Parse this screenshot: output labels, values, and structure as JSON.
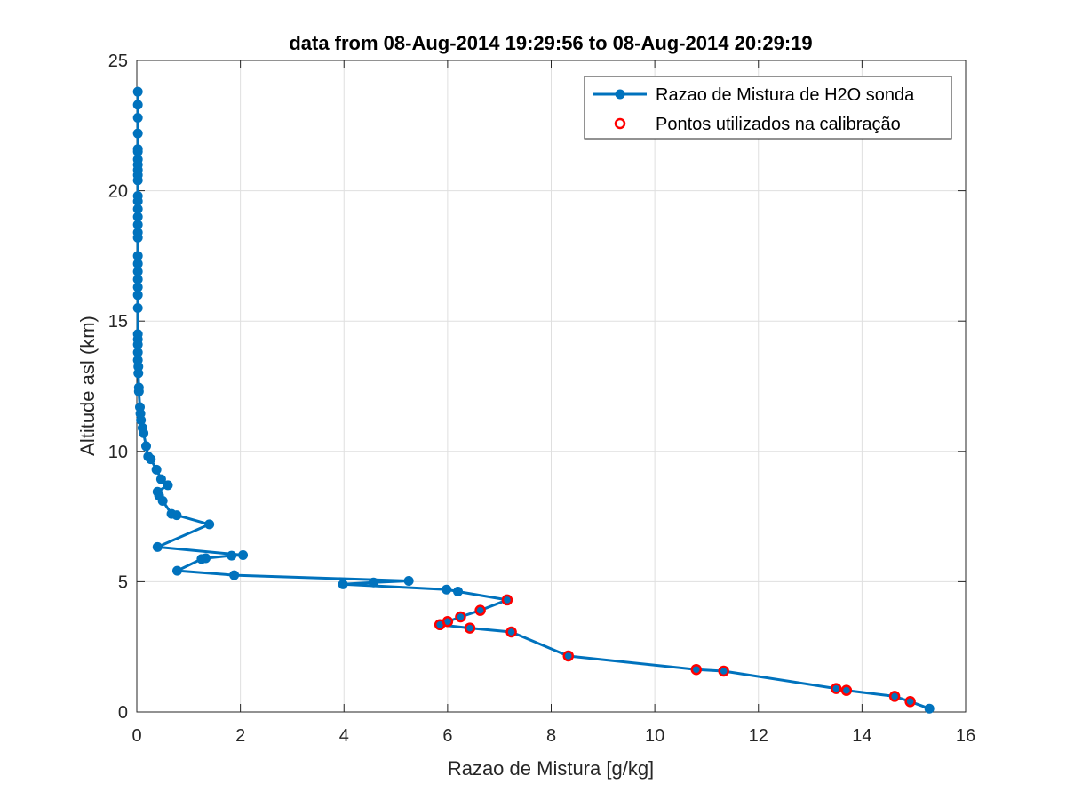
{
  "chart_data": {
    "type": "line",
    "title": "data from 08-Aug-2014 19:29:56 to 08-Aug-2014 20:29:19",
    "xlabel": "Razao de Mistura [g/kg]",
    "ylabel": "Altitude asl (km)",
    "xlim": [
      0,
      16
    ],
    "ylim": [
      0,
      25
    ],
    "xticks": [
      0,
      2,
      4,
      6,
      8,
      10,
      12,
      14,
      16
    ],
    "yticks": [
      0,
      5,
      10,
      15,
      20,
      25
    ],
    "grid": true,
    "legend_position": "top-right",
    "series": [
      {
        "name": "Razao de Mistura de H2O sonda",
        "color": "#0072bd",
        "marker": "filled-circle",
        "points": [
          [
            15.3,
            0.13
          ],
          [
            14.93,
            0.4
          ],
          [
            14.63,
            0.6
          ],
          [
            13.7,
            0.83
          ],
          [
            13.5,
            0.9
          ],
          [
            11.33,
            1.57
          ],
          [
            10.8,
            1.63
          ],
          [
            8.33,
            2.15
          ],
          [
            7.23,
            3.07
          ],
          [
            6.43,
            3.22
          ],
          [
            5.85,
            3.35
          ],
          [
            6.0,
            3.47
          ],
          [
            6.25,
            3.65
          ],
          [
            6.63,
            3.9
          ],
          [
            7.15,
            4.3
          ],
          [
            6.2,
            4.62
          ],
          [
            5.98,
            4.7
          ],
          [
            3.98,
            4.9
          ],
          [
            4.57,
            4.97
          ],
          [
            5.25,
            5.03
          ],
          [
            1.88,
            5.25
          ],
          [
            0.78,
            5.42
          ],
          [
            1.25,
            5.87
          ],
          [
            1.33,
            5.9
          ],
          [
            1.83,
            6.0
          ],
          [
            2.05,
            6.02
          ],
          [
            0.4,
            6.33
          ],
          [
            1.4,
            7.2
          ],
          [
            0.77,
            7.55
          ],
          [
            0.67,
            7.6
          ],
          [
            0.5,
            8.1
          ],
          [
            0.43,
            8.3
          ],
          [
            0.4,
            8.45
          ],
          [
            0.6,
            8.7
          ],
          [
            0.47,
            8.93
          ],
          [
            0.38,
            9.3
          ],
          [
            0.27,
            9.7
          ],
          [
            0.22,
            9.8
          ],
          [
            0.18,
            10.2
          ],
          [
            0.13,
            10.7
          ],
          [
            0.11,
            10.9
          ],
          [
            0.08,
            11.2
          ],
          [
            0.07,
            11.45
          ],
          [
            0.06,
            11.7
          ],
          [
            0.04,
            12.3
          ],
          [
            0.04,
            12.45
          ],
          [
            0.03,
            13.0
          ],
          [
            0.03,
            13.25
          ],
          [
            0.02,
            13.5
          ],
          [
            0.02,
            13.8
          ],
          [
            0.02,
            14.1
          ],
          [
            0.02,
            14.3
          ],
          [
            0.02,
            14.5
          ],
          [
            0.02,
            15.5
          ],
          [
            0.02,
            16.0
          ],
          [
            0.02,
            16.3
          ],
          [
            0.02,
            16.6
          ],
          [
            0.02,
            16.9
          ],
          [
            0.02,
            17.2
          ],
          [
            0.02,
            17.5
          ],
          [
            0.02,
            18.2
          ],
          [
            0.02,
            18.4
          ],
          [
            0.02,
            18.7
          ],
          [
            0.02,
            19.0
          ],
          [
            0.02,
            19.3
          ],
          [
            0.02,
            19.6
          ],
          [
            0.02,
            19.8
          ],
          [
            0.02,
            20.4
          ],
          [
            0.02,
            20.6
          ],
          [
            0.02,
            20.8
          ],
          [
            0.02,
            21.0
          ],
          [
            0.02,
            21.2
          ],
          [
            0.02,
            21.5
          ],
          [
            0.02,
            21.6
          ],
          [
            0.02,
            22.2
          ],
          [
            0.02,
            22.8
          ],
          [
            0.02,
            23.3
          ],
          [
            0.02,
            23.8
          ]
        ]
      },
      {
        "name": "Pontos utilizados na calibração",
        "color": "#ff0000",
        "marker": "open-circle",
        "points": [
          [
            14.93,
            0.4
          ],
          [
            14.63,
            0.6
          ],
          [
            13.7,
            0.83
          ],
          [
            13.5,
            0.9
          ],
          [
            11.33,
            1.57
          ],
          [
            10.8,
            1.63
          ],
          [
            8.33,
            2.15
          ],
          [
            7.23,
            3.07
          ],
          [
            6.43,
            3.22
          ],
          [
            5.85,
            3.35
          ],
          [
            6.0,
            3.47
          ],
          [
            6.25,
            3.65
          ],
          [
            6.63,
            3.9
          ],
          [
            7.15,
            4.3
          ]
        ]
      }
    ]
  }
}
